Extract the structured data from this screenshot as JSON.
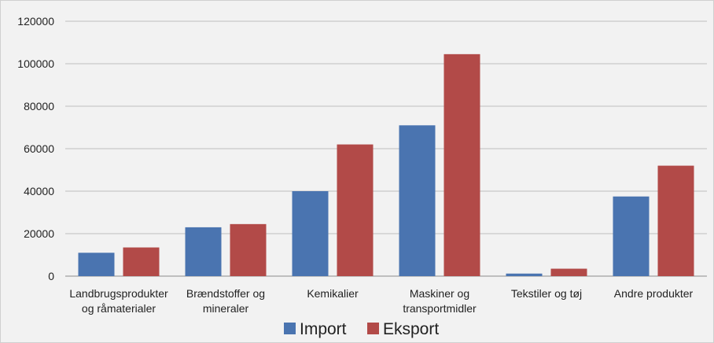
{
  "chart_data": {
    "type": "bar",
    "categories": [
      [
        "Landbrugsprodukter",
        "og råmaterialer"
      ],
      [
        "Brændstoffer og",
        "mineraler"
      ],
      [
        "Kemikalier"
      ],
      [
        "Maskiner og",
        "transportmidler"
      ],
      [
        "Tekstiler og tøj"
      ],
      [
        "Andre produkter"
      ]
    ],
    "series": [
      {
        "name": "Import",
        "color": "#4a74b0",
        "values": [
          11000,
          23000,
          40000,
          71000,
          1200,
          37500
        ]
      },
      {
        "name": "Eksport",
        "color": "#b24a48",
        "values": [
          13500,
          24500,
          62000,
          104500,
          3500,
          52000
        ]
      }
    ],
    "ylim": [
      0,
      120000
    ],
    "yticks": [
      0,
      20000,
      40000,
      60000,
      80000,
      100000,
      120000
    ],
    "ytick_labels": [
      "0",
      "20000",
      "40000",
      "60000",
      "80000",
      "100000",
      "120000"
    ],
    "grid": true,
    "legend_position": "bottom"
  }
}
